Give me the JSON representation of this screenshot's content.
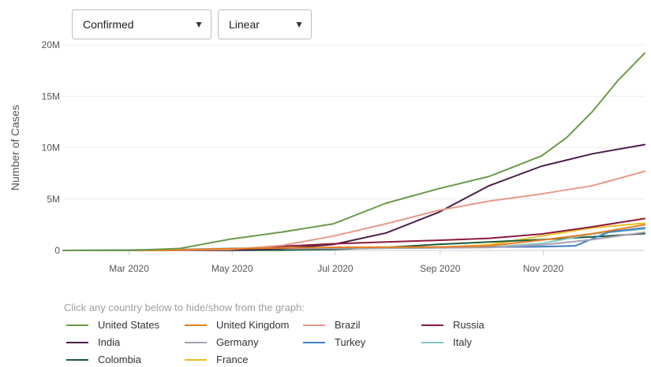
{
  "controls": {
    "metric": {
      "value": "Confirmed"
    },
    "scale": {
      "value": "Linear"
    }
  },
  "legend": {
    "hint": "Click any country below to hide/show from the graph:"
  },
  "chart_data": {
    "type": "line",
    "xlabel": "",
    "ylabel": "Number of Cases",
    "x_ticks": [
      "Mar 2020",
      "May 2020",
      "Jul 2020",
      "Sep 2020",
      "Nov 2020"
    ],
    "y_ticks": [
      "0",
      "5M",
      "10M",
      "15M",
      "20M"
    ],
    "ylim": [
      0,
      20000000
    ],
    "xlim": [
      "2020-01-22",
      "2020-12-31"
    ],
    "grid": true,
    "legend_position": "bottom",
    "series": [
      {
        "name": "United States",
        "color": "#6b9a4a",
        "dates": [
          "2020-01-22",
          "2020-03-01",
          "2020-03-31",
          "2020-04-30",
          "2020-05-31",
          "2020-06-30",
          "2020-07-31",
          "2020-08-31",
          "2020-09-30",
          "2020-10-31",
          "2020-11-15",
          "2020-11-30",
          "2020-12-15",
          "2020-12-31"
        ],
        "values": [
          0,
          100,
          190000,
          1100000,
          1800000,
          2600000,
          4600000,
          6000000,
          7200000,
          9200000,
          11000000,
          13500000,
          16500000,
          19200000
        ]
      },
      {
        "name": "United Kingdom",
        "color": "#e67e22",
        "dates": [
          "2020-01-22",
          "2020-03-15",
          "2020-04-30",
          "2020-06-30",
          "2020-08-31",
          "2020-09-30",
          "2020-10-31",
          "2020-11-30",
          "2020-12-31"
        ],
        "values": [
          0,
          1400,
          170000,
          310000,
          340000,
          450000,
          1000000,
          1630000,
          2500000
        ]
      },
      {
        "name": "Brazil",
        "color": "#e8998a",
        "dates": [
          "2020-01-22",
          "2020-03-31",
          "2020-04-30",
          "2020-05-31",
          "2020-06-30",
          "2020-07-31",
          "2020-08-31",
          "2020-09-30",
          "2020-10-31",
          "2020-11-30",
          "2020-12-31"
        ],
        "values": [
          0,
          5700,
          87000,
          500000,
          1400000,
          2600000,
          3900000,
          4800000,
          5500000,
          6300000,
          7700000
        ]
      },
      {
        "name": "Russia",
        "color": "#8e1b3c",
        "dates": [
          "2020-01-22",
          "2020-03-31",
          "2020-04-30",
          "2020-05-31",
          "2020-06-30",
          "2020-07-31",
          "2020-08-31",
          "2020-09-30",
          "2020-10-31",
          "2020-11-30",
          "2020-12-31"
        ],
        "values": [
          0,
          2300,
          100000,
          400000,
          650000,
          830000,
          990000,
          1180000,
          1600000,
          2300000,
          3100000
        ]
      },
      {
        "name": "India",
        "color": "#4a1f4a",
        "dates": [
          "2020-01-22",
          "2020-03-31",
          "2020-04-30",
          "2020-05-31",
          "2020-06-30",
          "2020-07-31",
          "2020-08-31",
          "2020-09-30",
          "2020-10-31",
          "2020-11-30",
          "2020-12-31"
        ],
        "values": [
          0,
          1400,
          34000,
          190000,
          580000,
          1700000,
          3700000,
          6300000,
          8200000,
          9400000,
          10300000
        ]
      },
      {
        "name": "Germany",
        "color": "#a89fb5",
        "dates": [
          "2020-01-22",
          "2020-03-31",
          "2020-04-30",
          "2020-06-30",
          "2020-08-31",
          "2020-09-30",
          "2020-10-31",
          "2020-11-30",
          "2020-12-31"
        ],
        "values": [
          0,
          72000,
          160000,
          195000,
          245000,
          290000,
          530000,
          1060000,
          1760000
        ]
      },
      {
        "name": "Turkey",
        "color": "#3d7fc1",
        "dates": [
          "2020-01-22",
          "2020-03-31",
          "2020-04-30",
          "2020-06-30",
          "2020-08-31",
          "2020-09-30",
          "2020-10-31",
          "2020-11-20",
          "2020-12-10",
          "2020-12-31"
        ],
        "values": [
          0,
          14000,
          120000,
          200000,
          270000,
          320000,
          370000,
          450000,
          1800000,
          2200000
        ]
      },
      {
        "name": "Italy",
        "color": "#84c5c0",
        "dates": [
          "2020-01-22",
          "2020-03-31",
          "2020-04-30",
          "2020-06-30",
          "2020-08-31",
          "2020-09-30",
          "2020-10-31",
          "2020-11-30",
          "2020-12-31"
        ],
        "values": [
          0,
          105000,
          205000,
          240000,
          270000,
          315000,
          680000,
          1600000,
          2100000
        ]
      },
      {
        "name": "Colombia",
        "color": "#1e5a3a",
        "dates": [
          "2020-01-22",
          "2020-03-31",
          "2020-04-30",
          "2020-05-31",
          "2020-06-30",
          "2020-07-31",
          "2020-08-31",
          "2020-09-30",
          "2020-10-31",
          "2020-11-30",
          "2020-12-31"
        ],
        "values": [
          0,
          900,
          6500,
          29000,
          97000,
          290000,
          600000,
          830000,
          1060000,
          1320000,
          1640000
        ]
      },
      {
        "name": "France",
        "color": "#e8c020",
        "dates": [
          "2020-01-22",
          "2020-03-31",
          "2020-04-30",
          "2020-06-30",
          "2020-08-31",
          "2020-09-30",
          "2020-10-31",
          "2020-11-30",
          "2020-12-31"
        ],
        "values": [
          0,
          52000,
          130000,
          165000,
          290000,
          560000,
          1400000,
          2200000,
          2650000
        ]
      }
    ]
  }
}
